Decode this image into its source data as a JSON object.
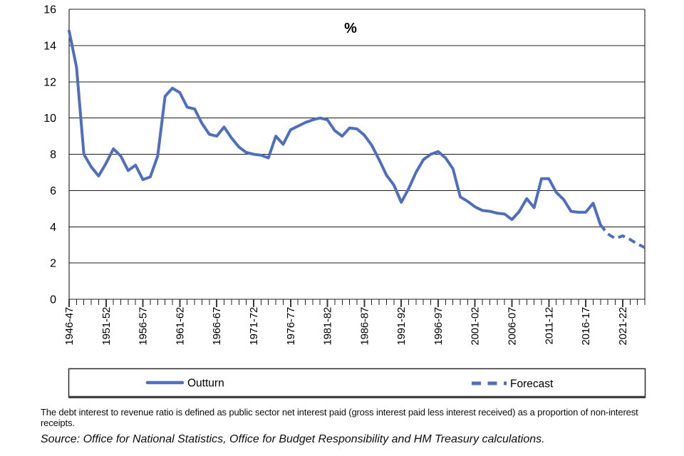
{
  "chart": {
    "unit_label": "%",
    "legend": {
      "outturn_label": "Outturn",
      "forecast_label": "Forecast"
    },
    "footnote": "The debt interest to revenue ratio is defined as public sector net interest paid (gross interest paid less interest received) as a proportion of non-interest receipts.",
    "source": "Source: Office for National Statistics, Office for Budget Responsibility and HM Treasury calculations.",
    "colors": {
      "line": "#4f6ebb",
      "axis": "#000000"
    }
  },
  "chart_data": {
    "type": "line",
    "title": "%",
    "xlabel": "",
    "ylabel": "",
    "ylim": [
      0,
      16
    ],
    "ytick_step": 2,
    "xtick_label_every": 5,
    "grid": "horizontal",
    "legend_position": "bottom-box",
    "categories": [
      "1946-47",
      "1947-48",
      "1948-49",
      "1949-50",
      "1950-51",
      "1951-52",
      "1952-53",
      "1953-54",
      "1954-55",
      "1955-56",
      "1956-57",
      "1957-58",
      "1958-59",
      "1959-60",
      "1960-61",
      "1961-62",
      "1962-63",
      "1963-64",
      "1964-65",
      "1965-66",
      "1966-67",
      "1967-68",
      "1968-69",
      "1969-70",
      "1970-71",
      "1971-72",
      "1972-73",
      "1973-74",
      "1974-75",
      "1975-76",
      "1976-77",
      "1977-78",
      "1978-79",
      "1979-80",
      "1980-81",
      "1981-82",
      "1982-83",
      "1983-84",
      "1984-85",
      "1985-86",
      "1986-87",
      "1987-88",
      "1988-89",
      "1989-90",
      "1990-91",
      "1991-92",
      "1992-93",
      "1993-94",
      "1994-95",
      "1995-96",
      "1996-97",
      "1997-98",
      "1998-99",
      "1999-00",
      "2000-01",
      "2001-02",
      "2002-03",
      "2003-04",
      "2004-05",
      "2005-06",
      "2006-07",
      "2007-08",
      "2008-09",
      "2009-10",
      "2010-11",
      "2011-12",
      "2012-13",
      "2013-14",
      "2014-15",
      "2015-16",
      "2016-17",
      "2017-18",
      "2018-19",
      "2019-20",
      "2020-21",
      "2021-22",
      "2022-23",
      "2023-24",
      "2024-25"
    ],
    "values": [
      14.8,
      12.8,
      8.0,
      7.3,
      6.8,
      7.5,
      8.3,
      7.9,
      7.1,
      7.4,
      6.6,
      6.75,
      7.9,
      11.2,
      11.65,
      11.4,
      10.6,
      10.5,
      9.7,
      9.1,
      9.0,
      9.5,
      8.9,
      8.4,
      8.1,
      8.0,
      7.95,
      7.8,
      9.0,
      8.55,
      9.35,
      9.55,
      9.75,
      9.9,
      10.0,
      9.9,
      9.3,
      9.0,
      9.45,
      9.4,
      9.05,
      8.5,
      7.7,
      6.85,
      6.3,
      5.35,
      6.1,
      7.0,
      7.7,
      8.0,
      8.15,
      7.8,
      7.2,
      5.65,
      5.4,
      5.1,
      4.9,
      4.85,
      4.75,
      4.7,
      4.4,
      4.85,
      5.55,
      5.05,
      6.65,
      6.65,
      5.9,
      5.5,
      4.85,
      4.8,
      4.8,
      5.3,
      4.1,
      3.6,
      3.35,
      3.5,
      3.3,
      3.05,
      2.85
    ],
    "forecast_start_index": 72,
    "series": [
      {
        "name": "Outturn",
        "style": "solid"
      },
      {
        "name": "Forecast",
        "style": "dashed"
      }
    ]
  }
}
